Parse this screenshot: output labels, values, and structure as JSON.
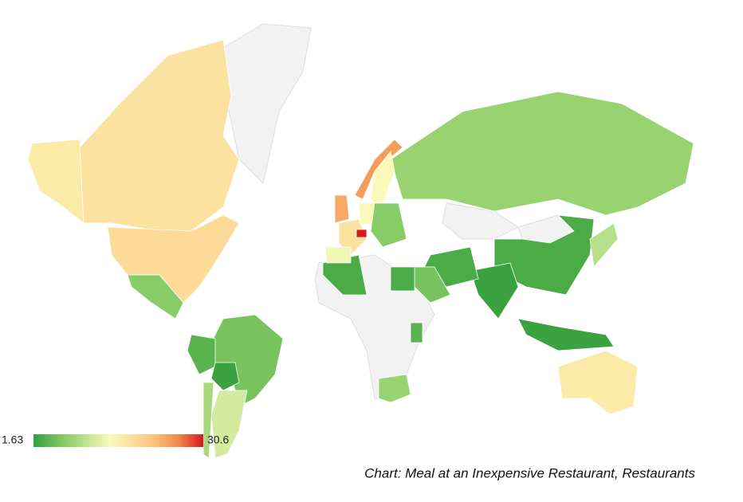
{
  "map": {
    "legend_min": 1.63,
    "legend_max": 30.6,
    "caption": "Chart: Meal at an Inexpensive Restaurant, Restaurants",
    "region_values": [
      17,
      18,
      19,
      7,
      6,
      4,
      2,
      12,
      9,
      8,
      3,
      2,
      2,
      10,
      17,
      3,
      6,
      3,
      3,
      4,
      8,
      25,
      15,
      24,
      18,
      14,
      15,
      30.6,
      7
    ]
  }
}
